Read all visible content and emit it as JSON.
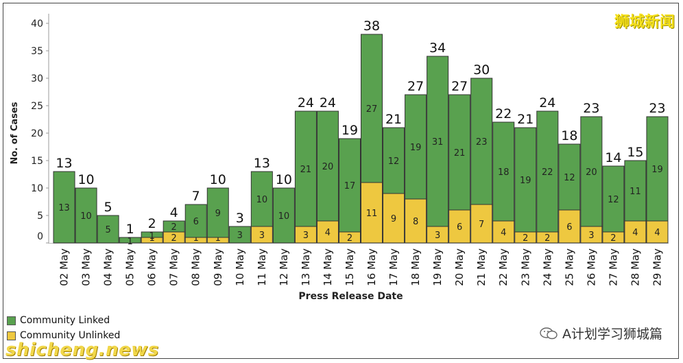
{
  "chart_data": {
    "type": "bar",
    "stacked": true,
    "xlabel": "Press Release Date",
    "ylabel": "No. of Cases",
    "ylim": [
      0,
      42
    ],
    "yticks": [
      0,
      5,
      10,
      15,
      20,
      25,
      30,
      35,
      40
    ],
    "categories": [
      "02 May",
      "03 May",
      "04 May",
      "05 May",
      "06 May",
      "07 May",
      "08 May",
      "09 May",
      "10 May",
      "11 May",
      "12 May",
      "13 May",
      "14 May",
      "15 May",
      "16 May",
      "17 May",
      "18 May",
      "19 May",
      "20 May",
      "21 May",
      "22 May",
      "23 May",
      "24 May",
      "25 May",
      "26 May",
      "27 May",
      "28 May",
      "29 May"
    ],
    "series": [
      {
        "name": "Community Unlinked",
        "color": "#eec840",
        "values": [
          0,
          0,
          0,
          0,
          1,
          2,
          1,
          1,
          0,
          3,
          0,
          3,
          4,
          2,
          11,
          9,
          8,
          3,
          6,
          7,
          4,
          2,
          2,
          6,
          3,
          2,
          4,
          4
        ],
        "labels": [
          "",
          "",
          "",
          "",
          "1",
          "2",
          "1",
          "1",
          "",
          "3",
          "",
          "3",
          "4",
          "2",
          "11",
          "9",
          "8",
          "3",
          "6",
          "7",
          "4",
          "2",
          "2",
          "6",
          "3",
          "2",
          "4",
          "4"
        ]
      },
      {
        "name": "Community Linked",
        "color": "#59a14f",
        "values": [
          13,
          10,
          5,
          1,
          1,
          2,
          6,
          9,
          3,
          10,
          10,
          21,
          20,
          17,
          27,
          12,
          19,
          31,
          21,
          23,
          18,
          19,
          22,
          12,
          20,
          12,
          11,
          19
        ],
        "labels": [
          "13",
          "10",
          "5",
          "1",
          "1",
          "2",
          "6",
          "9",
          "3",
          "10",
          "10",
          "21",
          "20",
          "17",
          "27",
          "12",
          "19",
          "31",
          "21",
          "23",
          "18",
          "19",
          "22",
          "12",
          "20",
          "12",
          "11",
          "19"
        ]
      }
    ],
    "totals": [
      13,
      10,
      5,
      1,
      2,
      4,
      7,
      10,
      3,
      13,
      10,
      24,
      24,
      19,
      38,
      21,
      27,
      34,
      27,
      30,
      22,
      21,
      24,
      18,
      23,
      14,
      15,
      23
    ],
    "legend_position": "bottom-left",
    "grid": false
  },
  "watermarks": {
    "top_right": "狮城新闻",
    "bottom_left": "shicheng.news",
    "wechat": "A计划学习狮城篇"
  }
}
